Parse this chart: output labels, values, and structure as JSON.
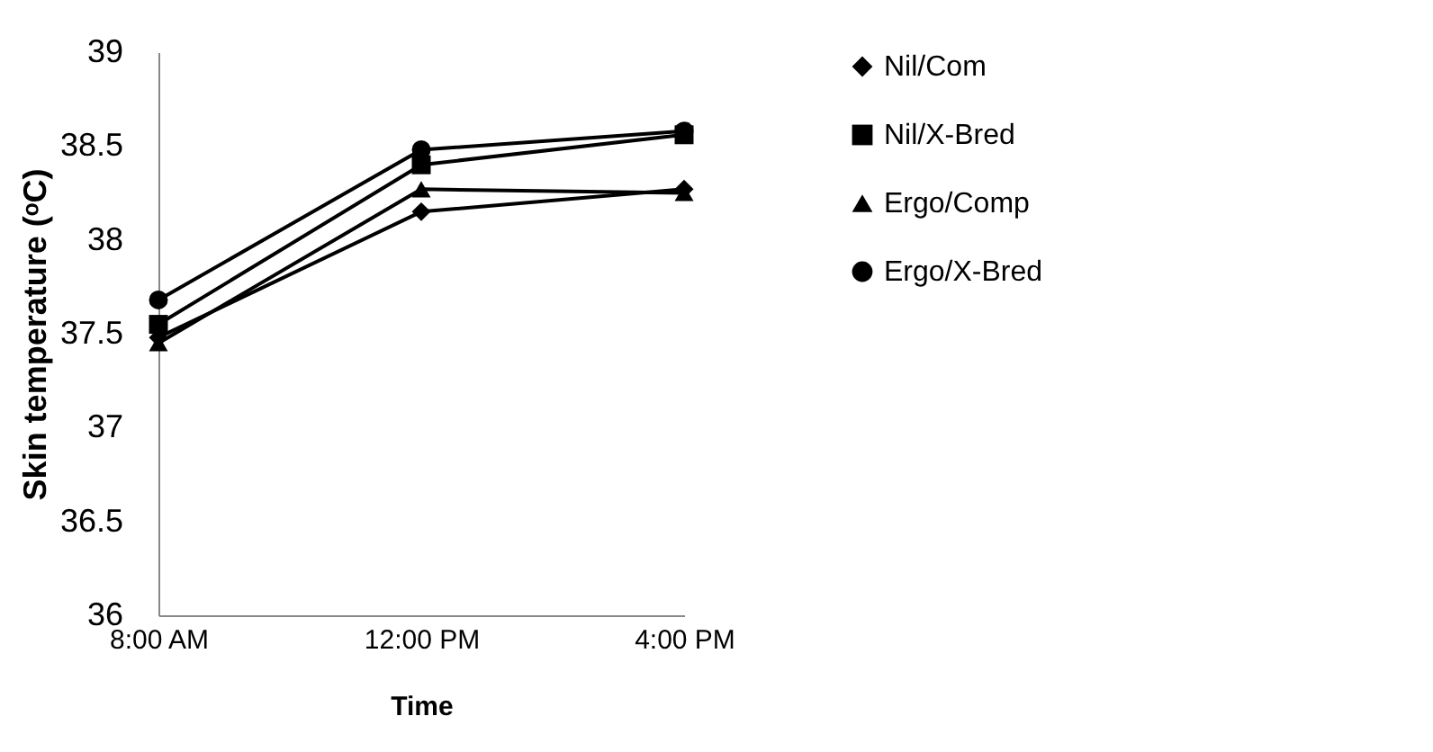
{
  "chart_data": {
    "type": "line",
    "xlabel": "Time",
    "ylabel": "Skin temperature (ᵒC)",
    "categories": [
      "8:00 AM",
      "12:00 PM",
      "4:00 PM"
    ],
    "series": [
      {
        "name": "Nil/Com",
        "color": "#000000",
        "marker": "diamond",
        "values": [
          37.48,
          38.15,
          38.27
        ]
      },
      {
        "name": "Nil/X-Bred",
        "color": "#000000",
        "marker": "square",
        "values": [
          37.55,
          38.4,
          38.56
        ]
      },
      {
        "name": "Ergo/Comp",
        "color": "#000000",
        "marker": "triangle",
        "values": [
          37.45,
          38.27,
          38.25
        ]
      },
      {
        "name": "Ergo/X-Bred",
        "color": "#000000",
        "marker": "circle",
        "values": [
          37.68,
          38.48,
          38.58
        ]
      }
    ],
    "ylim": [
      36,
      39
    ],
    "yticks": [
      36,
      36.5,
      37,
      37.5,
      38,
      38.5,
      39
    ],
    "grid": false,
    "legend": "right",
    "line_style": "solid"
  }
}
